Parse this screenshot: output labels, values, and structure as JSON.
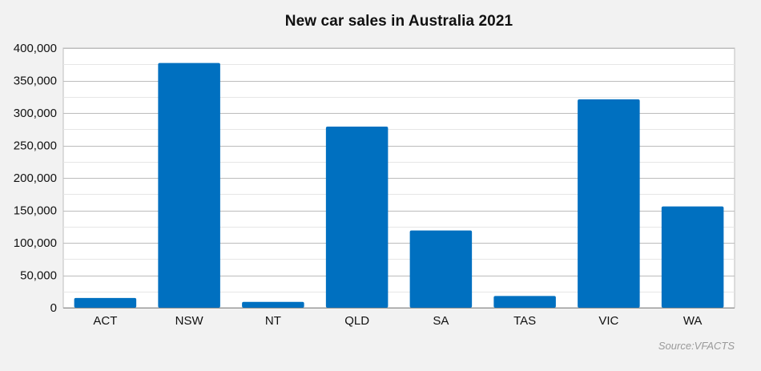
{
  "chart_data": {
    "type": "bar",
    "title": "New car sales in Australia 2021",
    "categories": [
      "ACT",
      "NSW",
      "NT",
      "QLD",
      "SA",
      "TAS",
      "VIC",
      "WA"
    ],
    "values": [
      15000,
      377000,
      9000,
      279000,
      119000,
      18000,
      321000,
      156000
    ],
    "xlabel": "",
    "ylabel": "",
    "ylim": [
      0,
      400000
    ],
    "yticks": [
      0,
      50000,
      100000,
      150000,
      200000,
      250000,
      300000,
      350000,
      400000
    ],
    "ytick_labels": [
      "0",
      "50,000",
      "100,000",
      "150,000",
      "200,000",
      "250,000",
      "300,000",
      "350,000",
      "400,000"
    ],
    "grid": true,
    "bar_color": "#0070c0",
    "plot_background": "#ffffff",
    "page_background": "#f2f2f2",
    "source": "Source:VFACTS"
  }
}
